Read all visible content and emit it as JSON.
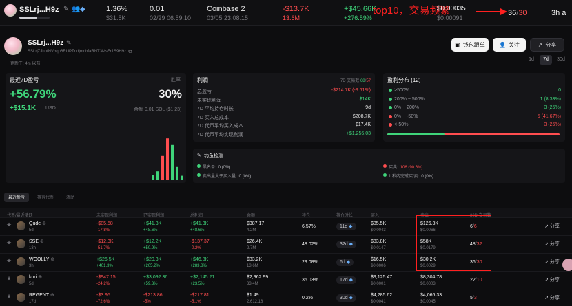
{
  "topbar": {
    "wallet_name": "SSLrj...H9z",
    "cols": [
      {
        "main": "1.36%",
        "sub": "$31.5K",
        "main_color": "#e6e6e6"
      },
      {
        "main": "0.01",
        "sub": "02/29 06:59:10",
        "main_color": "#e6e6e6"
      },
      {
        "main": "Coinbase 2",
        "sub": "03/05 23:08:15",
        "main_color": "#e6e6e6"
      },
      {
        "main": "-$13.7K",
        "sub": "13.6M",
        "main_color": "#ff4d4f"
      },
      {
        "main": "+$45.66K",
        "sub": "+276.59%",
        "main_color": "#3fd47a"
      }
    ],
    "annotation": "top10，交易频繁",
    "price": "$0.00035",
    "price_sub": "$0.00091",
    "count_a": "36",
    "count_b": "30",
    "age": "3h a"
  },
  "profile": {
    "name": "SSLrj...H9z",
    "address": "SSLrjZJhpfNVbqn6RUPTndjmdhfaRNT3MsFr1S9H9z",
    "updated": "更新于: 4m 以前",
    "buttons": {
      "wallet": "钱包跟单",
      "follow": "关注",
      "share": "分享"
    },
    "period_tabs": [
      "1d",
      "7d",
      "30d"
    ],
    "period_active": "7d"
  },
  "left_panel": {
    "title": "最近7D盈亏",
    "pnl_pct": "+56.79%",
    "pnl_usd": "+$15.1K",
    "unit": "USD",
    "winrate_label": "胜率",
    "winrate": "30%",
    "balance": "余额 0.01 SOL ($1.23)",
    "bars": [
      {
        "v": 0.12,
        "c": "#3fd47a"
      },
      {
        "v": 0.2,
        "c": "#3fd47a"
      },
      {
        "v": 0.55,
        "c": "#ff4d4f"
      },
      {
        "v": 0.95,
        "c": "#ff4d4f"
      },
      {
        "v": 0.8,
        "c": "#3fd47a"
      },
      {
        "v": 0.3,
        "c": "#3fd47a"
      },
      {
        "v": 0.1,
        "c": "#3fd47a"
      }
    ]
  },
  "profit_panel": {
    "title": "利润",
    "tx_label": "7D 交易数",
    "tx_buy": "68",
    "tx_sell": "57",
    "rows": [
      {
        "label": "总盈亏",
        "value": "-$214.7K (-9.61%)",
        "color": "#ff4d4f"
      },
      {
        "label": "未实现利润",
        "value": "$14K",
        "color": "#3fd47a"
      },
      {
        "label": "7D 平均持仓时长",
        "value": "9d",
        "color": "#e6e6e6"
      },
      {
        "label": "7D 买入总成本",
        "value": "$208.7K",
        "color": "#e6e6e6"
      },
      {
        "label": "7D 代币平均买入成本",
        "value": "$17.4K",
        "color": "#e6e6e6"
      },
      {
        "label": "7D 代币平均实现利润",
        "value": "+$1,256.03",
        "color": "#3fd47a"
      }
    ]
  },
  "dist_panel": {
    "title": "盈利分布 (12)",
    "rows": [
      {
        "label": ">500%",
        "value": "0",
        "dot": "#3fd47a"
      },
      {
        "label": "200% ~ 500%",
        "value": "1 (8.33%)",
        "dot": "#3fd47a"
      },
      {
        "label": "0% ~ 200%",
        "value": "3 (25%)",
        "dot": "#3fd47a"
      },
      {
        "label": "0% ~ -50%",
        "value": "5 (41.67%)",
        "dot": "#ff4d4f"
      },
      {
        "label": "<-50%",
        "value": "3 (25%)",
        "dot": "#ff4d4f"
      }
    ],
    "bar_green_fraction": 0.33
  },
  "phishing": {
    "title": "钓鱼检测",
    "items": [
      {
        "label": "黑名单:",
        "value": "0 (0%)",
        "dot": "#3fd47a",
        "color": "#bdbdc2"
      },
      {
        "label": "卖出量大于买入量:",
        "value": "0 (0%)",
        "dot": "#3fd47a",
        "color": "#bdbdc2"
      },
      {
        "label": "买卖:",
        "value": "106 (90.6%)",
        "dot": "#ff4d4f",
        "color": "#ff4d4f"
      },
      {
        "label": "1 秒内完成买/卖:",
        "value": "0 (0%)",
        "dot": "#3fd47a",
        "color": "#bdbdc2"
      }
    ]
  },
  "tabs": [
    "最近盈亏",
    "持有代币",
    "活动"
  ],
  "table": {
    "headers": [
      "代币/最近活跃",
      "未实现利润",
      "已实现利润",
      "总利润",
      "余额",
      "持仓",
      "持仓时长",
      "买入",
      "卖出",
      "30D 交易数"
    ],
    "share_label": "分享",
    "rows": [
      {
        "name": "Qude",
        "age": "5d",
        "unreal": "-$85.58",
        "unreal_sub": "-17.8%",
        "unreal_color": "#ff4d4f",
        "real": "+$41.3K",
        "real_sub": "+48.6%",
        "total": "+$41.3K",
        "total_sub": "+48.6%",
        "bal": "$387.17",
        "bal_sub": "4.2M",
        "pos": "6.57%",
        "dur": "11d",
        "buy": "$85.5K",
        "buy_sub": "$0.0043",
        "sell": "$126.3K",
        "sell_sub": "$0.0066",
        "tx_a": "6",
        "tx_b": "6"
      },
      {
        "name": "SSE",
        "age": "13h",
        "unreal": "-$12.3K",
        "unreal_sub": "-51.7%",
        "unreal_color": "#ff4d4f",
        "real": "+$12.2K",
        "real_sub": "+50.9%",
        "total": "-$137.37",
        "total_sub": "-0.2%",
        "bal": "$26.4K",
        "bal_sub": "2.7M",
        "pos": "48.02%",
        "dur": "32d",
        "buy": "$83.8K",
        "buy_sub": "$0.0147",
        "sell": "$58K",
        "sell_sub": "$0.0179",
        "tx_a": "48",
        "tx_b": "32"
      },
      {
        "name": "WOOLLY",
        "age": "3h",
        "unreal": "+$26.5K",
        "unreal_sub": "+401.3%",
        "unreal_color": "#3fd47a",
        "real": "+$20.3K",
        "real_sub": "+205.2%",
        "total": "+$46.8K",
        "total_sub": "+283.8%",
        "bal": "$33.2K",
        "bal_sub": "13.6M",
        "pos": "29.08%",
        "dur": "6d",
        "buy": "$16.5K",
        "buy_sub": "$0.0006",
        "sell": "$30.2K",
        "sell_sub": "$0.0029",
        "tx_a": "36",
        "tx_b": "30"
      },
      {
        "name": "kori",
        "age": "5d",
        "unreal": "-$947.15",
        "unreal_sub": "-24.2%",
        "unreal_color": "#ff4d4f",
        "real": "+$3,092.36",
        "real_sub": "+59.3%",
        "total": "+$2,145.21",
        "total_sub": "+23.5%",
        "bal": "$2,962.99",
        "bal_sub": "33.4M",
        "pos": "36.03%",
        "dur": "17d",
        "buy": "$9,125.47",
        "buy_sub": "$0.0001",
        "sell": "$8,304.78",
        "sell_sub": "$0.0003",
        "tx_a": "22",
        "tx_b": "10"
      },
      {
        "name": "REGENT",
        "age": "17d",
        "unreal": "-$3.95",
        "unreal_sub": "-72.6%",
        "unreal_color": "#ff4d4f",
        "real": "-$213.86",
        "real_sub": "-5%",
        "total": "-$217.81",
        "total_sub": "-5.1%",
        "bal": "$1.49",
        "bal_sub": "2,612.18",
        "pos": "0.2%",
        "dur": "30d",
        "buy": "$4,285.62",
        "buy_sub": "$0.0041",
        "sell": "$4,066.33",
        "sell_sub": "$0.0045",
        "tx_a": "5",
        "tx_b": "3"
      }
    ]
  }
}
